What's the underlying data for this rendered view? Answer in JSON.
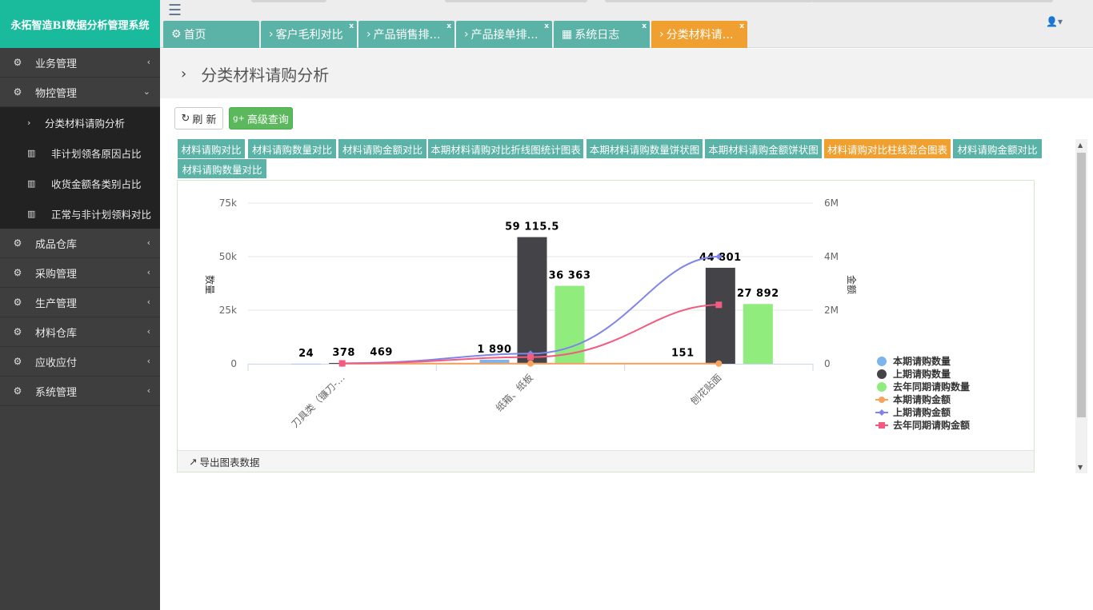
{
  "app": {
    "title": "永拓智造BI数据分析管理系统"
  },
  "sidebar": {
    "items": [
      {
        "label": "业务管理",
        "chevron": "‹"
      },
      {
        "label": "物控管理",
        "chevron": "⌄"
      },
      {
        "label": "成品仓库",
        "chevron": "‹"
      },
      {
        "label": "采购管理",
        "chevron": "‹"
      },
      {
        "label": "生产管理",
        "chevron": "‹"
      },
      {
        "label": "材料仓库",
        "chevron": "‹"
      },
      {
        "label": "应收应付",
        "chevron": "‹"
      },
      {
        "label": "系统管理",
        "chevron": "‹"
      }
    ],
    "submenu": [
      {
        "label": "分类材料请购分析",
        "icon": "chevron-right-icon"
      },
      {
        "label": "非计划领各原因占比",
        "icon": "bar-chart-icon"
      },
      {
        "label": "收货金额各类别占比",
        "icon": "bar-chart-icon"
      },
      {
        "label": "正常与非计划领料对比",
        "icon": "bar-chart-icon"
      }
    ]
  },
  "tabs": [
    {
      "label": "首页",
      "icon": "⚙"
    },
    {
      "label": "客户毛利对比",
      "icon": "›"
    },
    {
      "label": "产品销售排…",
      "icon": "›"
    },
    {
      "label": "产品接单排…",
      "icon": "›"
    },
    {
      "label": "系统日志",
      "icon": "▦"
    },
    {
      "label": "分类材料请…",
      "icon": "›"
    }
  ],
  "page": {
    "title": "分类材料请购分析"
  },
  "toolbar": {
    "refresh_label": "刷 新",
    "search_label": "高级查询"
  },
  "chart_tabs": [
    "材料请购对比",
    "材料请购数量对比",
    "材料请购金额对比",
    "本期材料请购对比折线图统计图表",
    "本期材料请购数量饼状图",
    "本期材料请购金额饼状图",
    "材料请购对比柱线混合图表",
    "材料请购金额对比",
    "材料请购数量对比"
  ],
  "export_label": "导出图表数据",
  "colors": {
    "brand": "#1abb9c",
    "tab": "#5bb3a7",
    "tab_active": "#f0a030",
    "sidebar": "#3e3e3e"
  },
  "chart_data": {
    "type": "bar",
    "categories": [
      "刀具类（镰刀-…",
      "纸箱、纸板",
      "刨花贴面"
    ],
    "ylabel": "数量",
    "y2label": "金额",
    "ylim": [
      0,
      75000
    ],
    "y2lim": [
      0,
      6000000
    ],
    "yticks": [
      "0",
      "25k",
      "50k",
      "75k"
    ],
    "y2ticks": [
      "0",
      "2M",
      "4M",
      "6M"
    ],
    "bar_series": [
      {
        "name": "本期请购数量",
        "color": "#7cb5ec",
        "values": [
          24,
          1890,
          151
        ],
        "labels": [
          "24",
          "1 890",
          "151"
        ]
      },
      {
        "name": "上期请购数量",
        "color": "#434348",
        "values": [
          378,
          59115.5,
          44801
        ],
        "labels": [
          "378",
          "59 115.5",
          "44 801"
        ]
      },
      {
        "name": "去年同期请购数量",
        "color": "#90ed7d",
        "values": [
          469,
          36363,
          27892
        ],
        "labels": [
          "469",
          "36 363",
          "27 892"
        ]
      }
    ],
    "line_series": [
      {
        "name": "本期请购金额",
        "color": "#f7a35c",
        "marker": "circle",
        "values": [
          5000,
          8000,
          7000
        ]
      },
      {
        "name": "上期请购金额",
        "color": "#8085e9",
        "marker": "diamond",
        "values": [
          20000,
          380000,
          4000000
        ]
      },
      {
        "name": "去年同期请购金额",
        "color": "#f15c80",
        "marker": "square",
        "values": [
          15000,
          250000,
          2200000
        ]
      }
    ],
    "legend_position": "bottom-right",
    "grid": true
  }
}
